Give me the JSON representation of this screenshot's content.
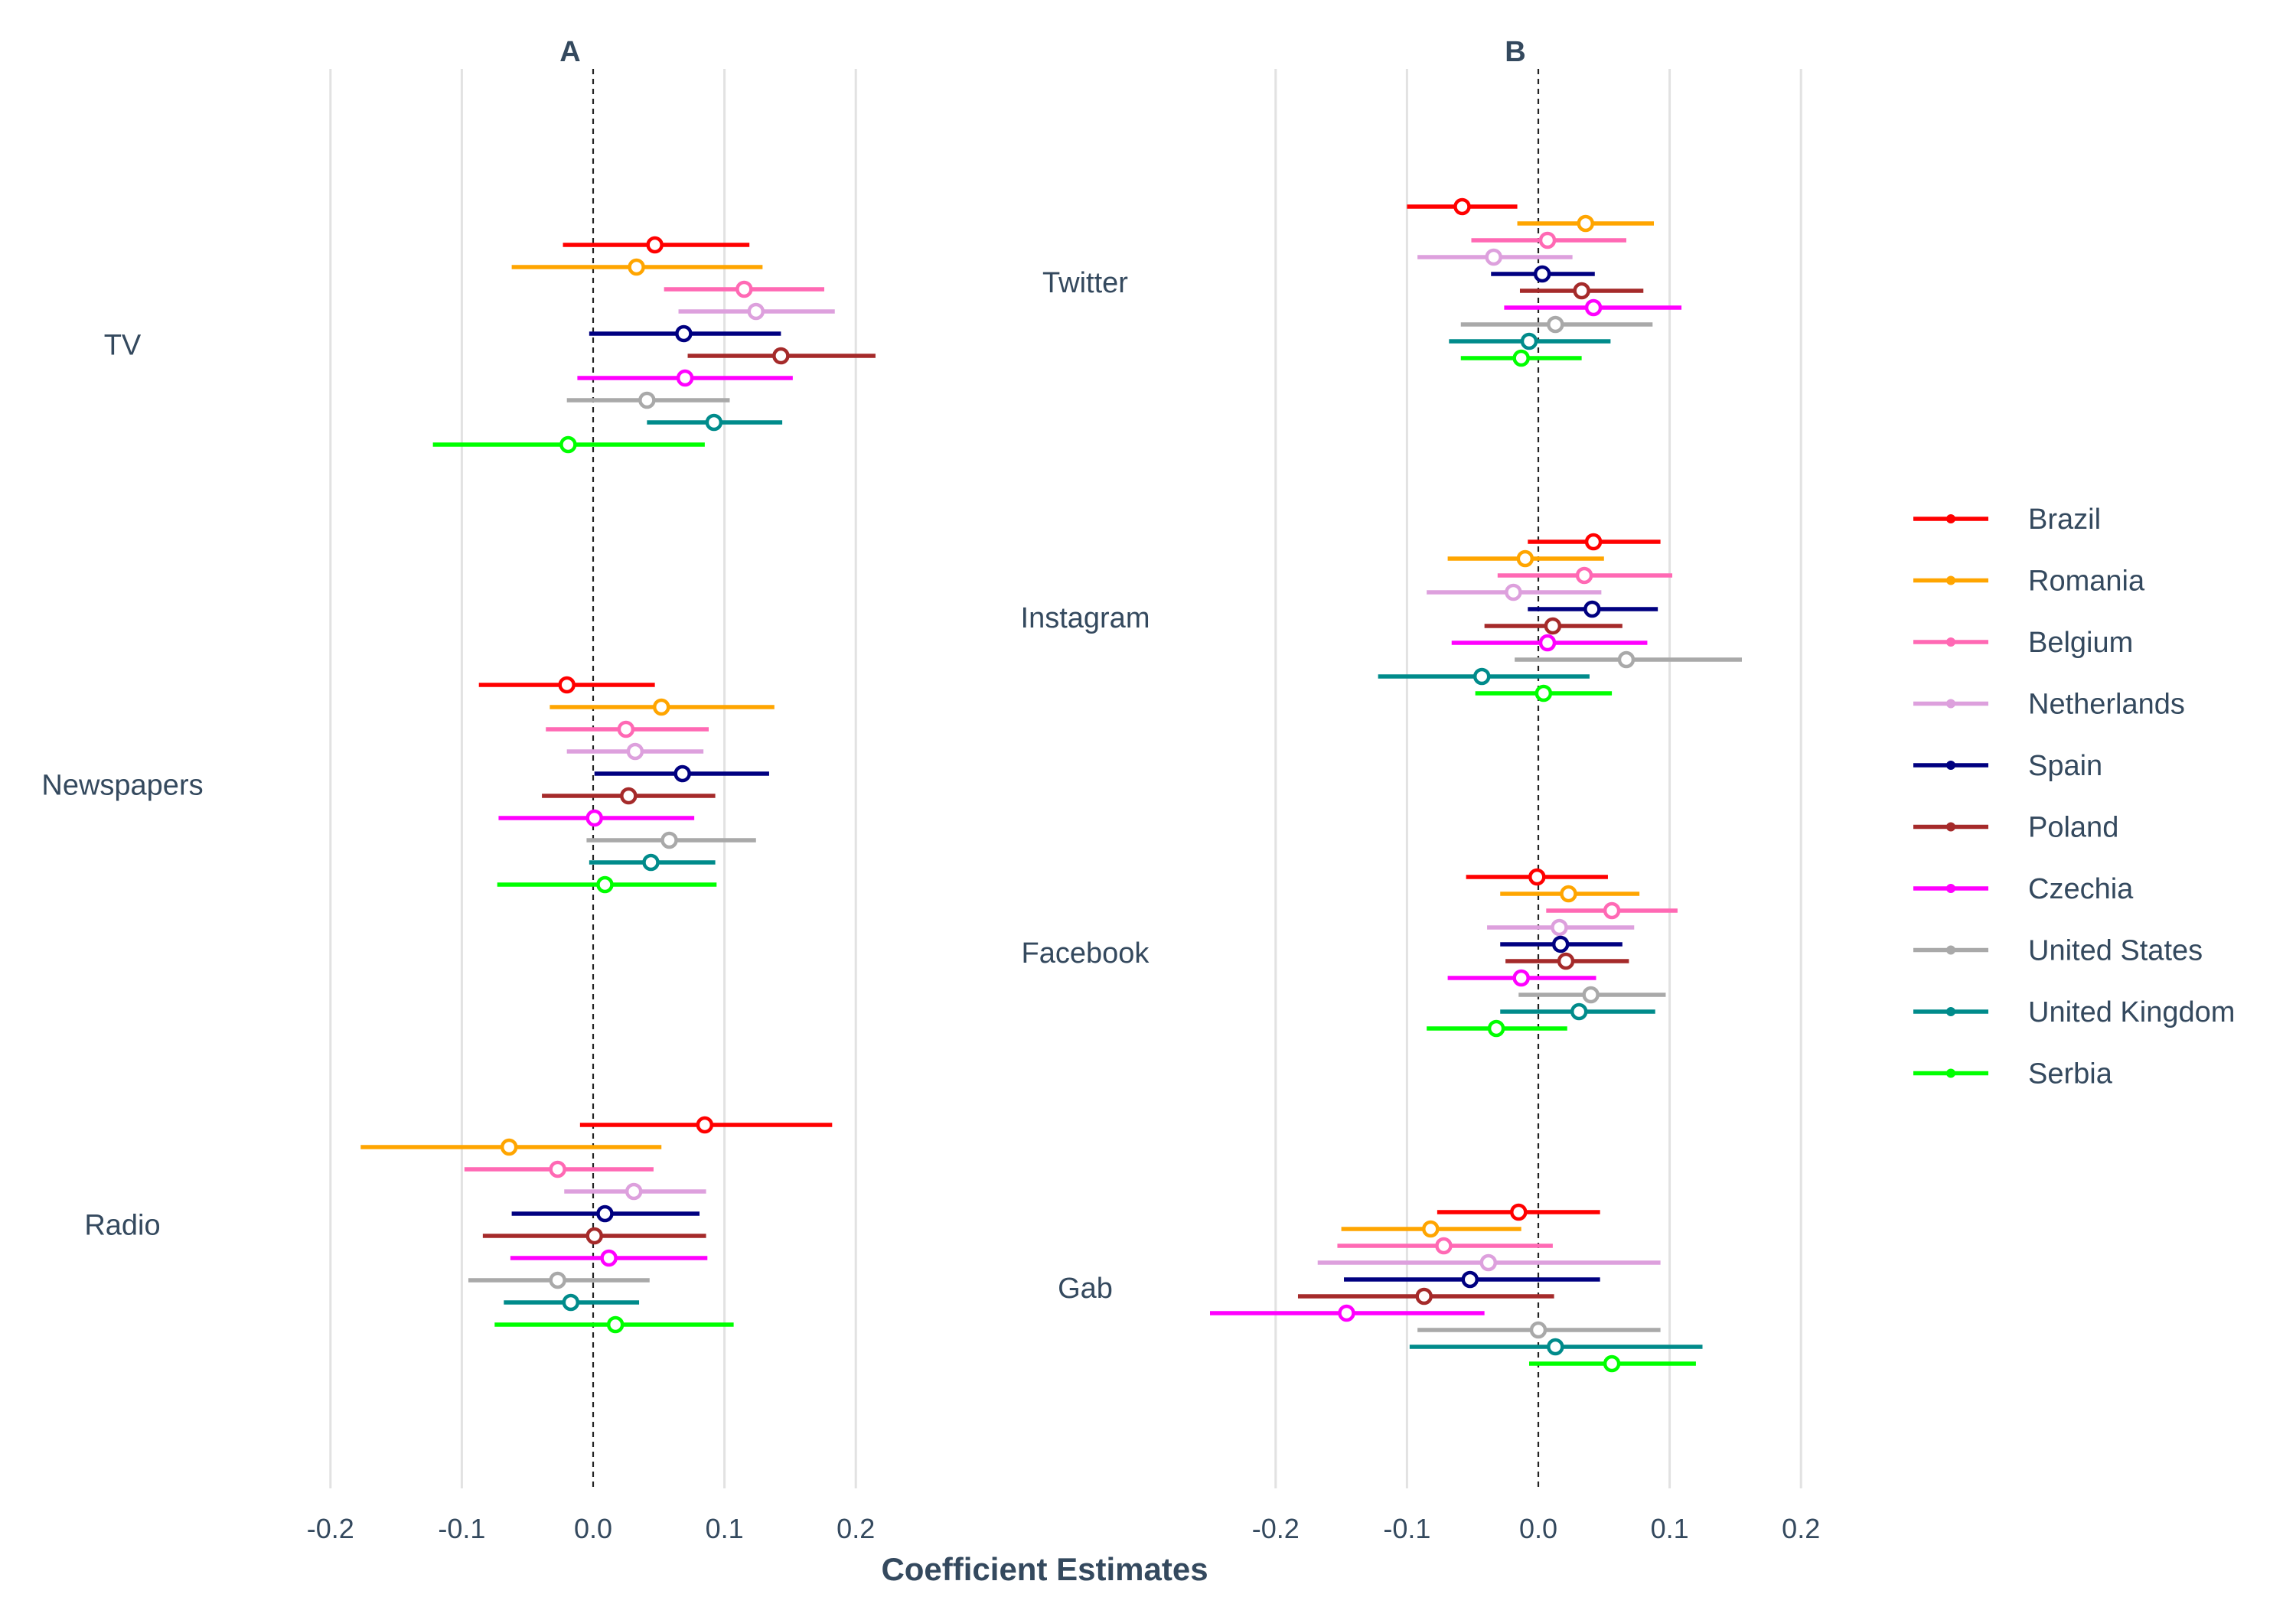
{
  "chart_data": {
    "type": "scatter",
    "subtype": "coefficient-plot",
    "xlabel": "Coefficient Estimates",
    "xticks": [
      "-0.2",
      "-0.1",
      "0.0",
      "0.1",
      "0.2"
    ],
    "xlim": [
      -0.25,
      0.25
    ],
    "grid": true,
    "legend_position": "right",
    "series_order": [
      "Brazil",
      "Romania",
      "Belgium",
      "Netherlands",
      "Spain",
      "Poland",
      "Czechia",
      "United States",
      "United Kingdom",
      "Serbia"
    ],
    "colors": {
      "Brazil": "#ff0000",
      "Romania": "#ffa500",
      "Belgium": "#ff69b4",
      "Netherlands": "#dda0dd",
      "Spain": "#000080",
      "Poland": "#a52a2a",
      "Czechia": "#ff00ff",
      "United States": "#a9a9a9",
      "United Kingdom": "#008b8b",
      "Serbia": "#00ff00"
    },
    "panels": [
      {
        "title": "A",
        "categories": [
          {
            "name": "TV",
            "points": [
              {
                "country": "Brazil",
                "est": 0.047,
                "lo": -0.023,
                "hi": 0.119
              },
              {
                "country": "Romania",
                "est": 0.033,
                "lo": -0.062,
                "hi": 0.129
              },
              {
                "country": "Belgium",
                "est": 0.115,
                "lo": 0.054,
                "hi": 0.176
              },
              {
                "country": "Netherlands",
                "est": 0.124,
                "lo": 0.065,
                "hi": 0.184
              },
              {
                "country": "Spain",
                "est": 0.069,
                "lo": -0.003,
                "hi": 0.143
              },
              {
                "country": "Poland",
                "est": 0.143,
                "lo": 0.072,
                "hi": 0.215
              },
              {
                "country": "Czechia",
                "est": 0.07,
                "lo": -0.012,
                "hi": 0.152
              },
              {
                "country": "United States",
                "est": 0.041,
                "lo": -0.02,
                "hi": 0.104
              },
              {
                "country": "United Kingdom",
                "est": 0.092,
                "lo": 0.041,
                "hi": 0.144
              },
              {
                "country": "Serbia",
                "est": -0.019,
                "lo": -0.122,
                "hi": 0.085
              }
            ]
          },
          {
            "name": "Newspapers",
            "points": [
              {
                "country": "Brazil",
                "est": -0.02,
                "lo": -0.087,
                "hi": 0.047
              },
              {
                "country": "Romania",
                "est": 0.052,
                "lo": -0.033,
                "hi": 0.138
              },
              {
                "country": "Belgium",
                "est": 0.025,
                "lo": -0.036,
                "hi": 0.088
              },
              {
                "country": "Netherlands",
                "est": 0.032,
                "lo": -0.02,
                "hi": 0.084
              },
              {
                "country": "Spain",
                "est": 0.068,
                "lo": 0.001,
                "hi": 0.134
              },
              {
                "country": "Poland",
                "est": 0.027,
                "lo": -0.039,
                "hi": 0.093
              },
              {
                "country": "Czechia",
                "est": 0.001,
                "lo": -0.072,
                "hi": 0.077
              },
              {
                "country": "United States",
                "est": 0.058,
                "lo": -0.005,
                "hi": 0.124
              },
              {
                "country": "United Kingdom",
                "est": 0.044,
                "lo": -0.003,
                "hi": 0.093
              },
              {
                "country": "Serbia",
                "est": 0.009,
                "lo": -0.073,
                "hi": 0.094
              }
            ]
          },
          {
            "name": "Radio",
            "points": [
              {
                "country": "Brazil",
                "est": 0.085,
                "lo": -0.01,
                "hi": 0.182
              },
              {
                "country": "Romania",
                "est": -0.064,
                "lo": -0.177,
                "hi": 0.052
              },
              {
                "country": "Belgium",
                "est": -0.027,
                "lo": -0.098,
                "hi": 0.046
              },
              {
                "country": "Netherlands",
                "est": 0.031,
                "lo": -0.022,
                "hi": 0.086
              },
              {
                "country": "Spain",
                "est": 0.009,
                "lo": -0.062,
                "hi": 0.081
              },
              {
                "country": "Poland",
                "est": 0.001,
                "lo": -0.084,
                "hi": 0.086
              },
              {
                "country": "Czechia",
                "est": 0.012,
                "lo": -0.063,
                "hi": 0.087
              },
              {
                "country": "United States",
                "est": -0.027,
                "lo": -0.095,
                "hi": 0.043
              },
              {
                "country": "United Kingdom",
                "est": -0.017,
                "lo": -0.068,
                "hi": 0.035
              },
              {
                "country": "Serbia",
                "est": 0.017,
                "lo": -0.075,
                "hi": 0.107
              }
            ]
          }
        ]
      },
      {
        "title": "B",
        "categories": [
          {
            "name": "Twitter",
            "points": [
              {
                "country": "Brazil",
                "est": -0.058,
                "lo": -0.1,
                "hi": -0.016
              },
              {
                "country": "Romania",
                "est": 0.036,
                "lo": -0.016,
                "hi": 0.088
              },
              {
                "country": "Belgium",
                "est": 0.007,
                "lo": -0.051,
                "hi": 0.067
              },
              {
                "country": "Netherlands",
                "est": -0.034,
                "lo": -0.092,
                "hi": 0.026
              },
              {
                "country": "Spain",
                "est": 0.003,
                "lo": -0.036,
                "hi": 0.043
              },
              {
                "country": "Poland",
                "est": 0.033,
                "lo": -0.014,
                "hi": 0.08
              },
              {
                "country": "Czechia",
                "est": 0.042,
                "lo": -0.026,
                "hi": 0.109
              },
              {
                "country": "United States",
                "est": 0.013,
                "lo": -0.059,
                "hi": 0.087
              },
              {
                "country": "United Kingdom",
                "est": -0.007,
                "lo": -0.068,
                "hi": 0.055
              },
              {
                "country": "Serbia",
                "est": -0.013,
                "lo": -0.059,
                "hi": 0.033
              }
            ]
          },
          {
            "name": "Instagram",
            "points": [
              {
                "country": "Brazil",
                "est": 0.042,
                "lo": -0.008,
                "hi": 0.093
              },
              {
                "country": "Romania",
                "est": -0.01,
                "lo": -0.069,
                "hi": 0.05
              },
              {
                "country": "Belgium",
                "est": 0.035,
                "lo": -0.031,
                "hi": 0.102
              },
              {
                "country": "Netherlands",
                "est": -0.019,
                "lo": -0.085,
                "hi": 0.048
              },
              {
                "country": "Spain",
                "est": 0.041,
                "lo": -0.008,
                "hi": 0.091
              },
              {
                "country": "Poland",
                "est": 0.011,
                "lo": -0.041,
                "hi": 0.064
              },
              {
                "country": "Czechia",
                "est": 0.007,
                "lo": -0.066,
                "hi": 0.083
              },
              {
                "country": "United States",
                "est": 0.067,
                "lo": -0.018,
                "hi": 0.155
              },
              {
                "country": "United Kingdom",
                "est": -0.043,
                "lo": -0.122,
                "hi": 0.039
              },
              {
                "country": "Serbia",
                "est": 0.004,
                "lo": -0.048,
                "hi": 0.056
              }
            ]
          },
          {
            "name": "Facebook",
            "points": [
              {
                "country": "Brazil",
                "est": -0.001,
                "lo": -0.055,
                "hi": 0.053
              },
              {
                "country": "Romania",
                "est": 0.023,
                "lo": -0.029,
                "hi": 0.077
              },
              {
                "country": "Belgium",
                "est": 0.056,
                "lo": 0.006,
                "hi": 0.106
              },
              {
                "country": "Netherlands",
                "est": 0.016,
                "lo": -0.039,
                "hi": 0.073
              },
              {
                "country": "Spain",
                "est": 0.017,
                "lo": -0.029,
                "hi": 0.064
              },
              {
                "country": "Poland",
                "est": 0.021,
                "lo": -0.025,
                "hi": 0.069
              },
              {
                "country": "Czechia",
                "est": -0.013,
                "lo": -0.069,
                "hi": 0.044
              },
              {
                "country": "United States",
                "est": 0.04,
                "lo": -0.015,
                "hi": 0.097
              },
              {
                "country": "United Kingdom",
                "est": 0.031,
                "lo": -0.029,
                "hi": 0.089
              },
              {
                "country": "Serbia",
                "est": -0.032,
                "lo": -0.085,
                "hi": 0.022
              }
            ]
          },
          {
            "name": "Gab",
            "points": [
              {
                "country": "Brazil",
                "est": -0.015,
                "lo": -0.077,
                "hi": 0.047
              },
              {
                "country": "Romania",
                "est": -0.082,
                "lo": -0.15,
                "hi": -0.013
              },
              {
                "country": "Belgium",
                "est": -0.072,
                "lo": -0.153,
                "hi": 0.011
              },
              {
                "country": "Netherlands",
                "est": -0.038,
                "lo": -0.168,
                "hi": 0.093
              },
              {
                "country": "Spain",
                "est": -0.052,
                "lo": -0.148,
                "hi": 0.047
              },
              {
                "country": "Poland",
                "est": -0.087,
                "lo": -0.183,
                "hi": 0.012
              },
              {
                "country": "Czechia",
                "est": -0.146,
                "lo": -0.25,
                "hi": -0.041
              },
              {
                "country": "United States",
                "est": 0.0,
                "lo": -0.092,
                "hi": 0.093
              },
              {
                "country": "United Kingdom",
                "est": 0.013,
                "lo": -0.098,
                "hi": 0.125
              },
              {
                "country": "Serbia",
                "est": 0.056,
                "lo": -0.007,
                "hi": 0.12
              }
            ]
          }
        ]
      }
    ]
  }
}
